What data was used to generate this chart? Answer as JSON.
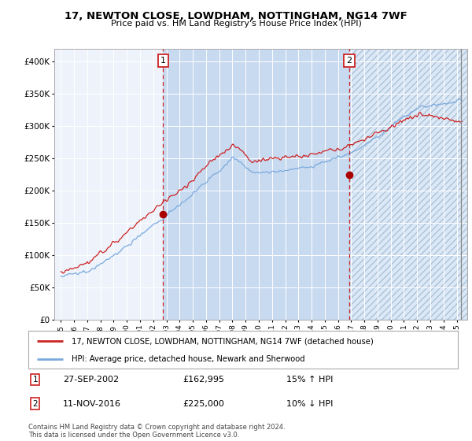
{
  "title": "17, NEWTON CLOSE, LOWDHAM, NOTTINGHAM, NG14 7WF",
  "subtitle": "Price paid vs. HM Land Registry's House Price Index (HPI)",
  "hpi_color": "#7aaadd",
  "price_color": "#cc2222",
  "sale1_date_num": 2002.74,
  "sale1_price": 162995,
  "sale1_text": "27-SEP-2002",
  "sale1_pct": "15% ↑ HPI",
  "sale2_date_num": 2016.86,
  "sale2_price": 225000,
  "sale2_text": "11-NOV-2016",
  "sale2_pct": "10% ↓ HPI",
  "legend_line1": "17, NEWTON CLOSE, LOWDHAM, NOTTINGHAM, NG14 7WF (detached house)",
  "legend_line2": "HPI: Average price, detached house, Newark and Sherwood",
  "footer": "Contains HM Land Registry data © Crown copyright and database right 2024.\nThis data is licensed under the Open Government Licence v3.0.",
  "xmin": 1994.5,
  "xmax": 2025.8,
  "ymin": 0,
  "ymax": 420000,
  "yticks": [
    0,
    50000,
    100000,
    150000,
    200000,
    250000,
    300000,
    350000,
    400000
  ],
  "ytick_labels": [
    "£0",
    "£50K",
    "£100K",
    "£150K",
    "£200K",
    "£250K",
    "£300K",
    "£350K",
    "£400K"
  ],
  "plot_bg": "#eef3fb",
  "shade_between": "#c8daf0",
  "shade_after": "#dce8f5"
}
